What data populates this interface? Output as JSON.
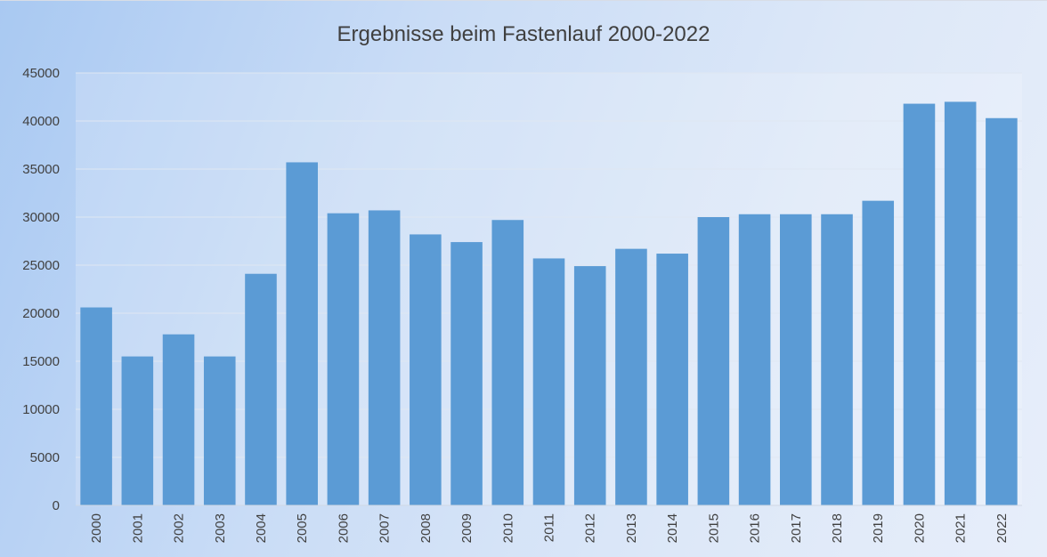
{
  "chart_data": {
    "type": "bar",
    "title": "Ergebnisse beim Fastenlauf 2000-2022",
    "xlabel": "",
    "ylabel": "",
    "categories": [
      "2000",
      "2001",
      "2002",
      "2003",
      "2004",
      "2005",
      "2006",
      "2007",
      "2008",
      "2009",
      "2010",
      "2011",
      "2012",
      "2013",
      "2014",
      "2015",
      "2016",
      "2017",
      "2018",
      "2019",
      "2020",
      "2021",
      "2022"
    ],
    "values": [
      20600,
      15500,
      17800,
      15500,
      24100,
      35700,
      30400,
      30700,
      28200,
      27400,
      29700,
      25700,
      24900,
      26700,
      26200,
      30000,
      30300,
      30300,
      30300,
      31700,
      41800,
      42000,
      40300
    ],
    "ylim": [
      0,
      45000
    ],
    "yticks": [
      0,
      5000,
      10000,
      15000,
      20000,
      25000,
      30000,
      35000,
      40000,
      45000
    ],
    "grid": true,
    "legend": "none",
    "x_tick_orientation": "vertical",
    "colors": {
      "bar": "#5b9bd5",
      "grid": "#dfe7f2",
      "text": "#404040"
    }
  }
}
